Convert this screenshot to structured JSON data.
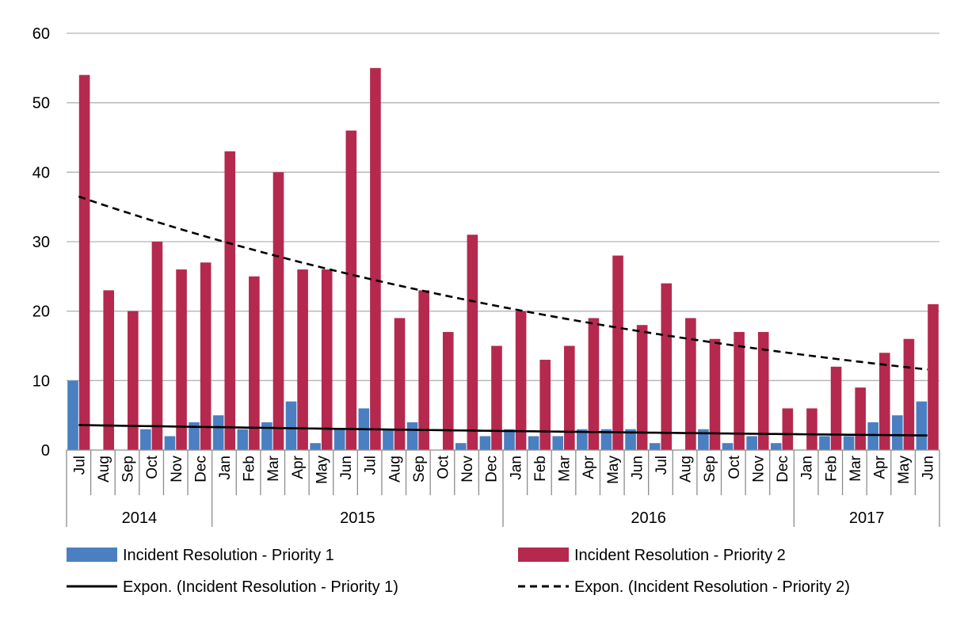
{
  "chart_data": {
    "type": "bar",
    "ylim": [
      0,
      60
    ],
    "yticks": [
      "0",
      "10",
      "20",
      "30",
      "40",
      "50",
      "60"
    ],
    "grid": true,
    "legend_position": "bottom",
    "categories": [
      "Jul",
      "Aug",
      "Sep",
      "Oct",
      "Nov",
      "Dec",
      "Jan",
      "Feb",
      "Mar",
      "Apr",
      "May",
      "Jun",
      "Jul",
      "Aug",
      "Sep",
      "Oct",
      "Nov",
      "Dec",
      "Jan",
      "Feb",
      "Mar",
      "Apr",
      "May",
      "Jun",
      "Jul",
      "Aug",
      "Sep",
      "Oct",
      "Nov",
      "Dec",
      "Jan",
      "Feb",
      "Mar",
      "Apr",
      "May",
      "Jun"
    ],
    "years": [
      {
        "label": "2014",
        "count": 6
      },
      {
        "label": "2015",
        "count": 12
      },
      {
        "label": "2016",
        "count": 12
      },
      {
        "label": "2017",
        "count": 6
      }
    ],
    "series": [
      {
        "name": "Incident Resolution - Priority 1",
        "color": "#4a7fc1",
        "values": [
          10,
          0,
          0,
          3,
          2,
          4,
          5,
          3,
          4,
          7,
          1,
          3,
          6,
          3,
          4,
          0,
          1,
          2,
          3,
          2,
          2,
          3,
          3,
          3,
          1,
          0,
          3,
          1,
          2,
          1,
          0,
          2,
          2,
          4,
          5,
          7
        ]
      },
      {
        "name": "Incident Resolution - Priority 2",
        "color": "#b5294e",
        "values": [
          54,
          23,
          20,
          30,
          26,
          27,
          43,
          25,
          40,
          26,
          26,
          46,
          55,
          19,
          23,
          17,
          31,
          15,
          20,
          13,
          15,
          19,
          28,
          18,
          24,
          19,
          16,
          17,
          17,
          6,
          6,
          12,
          9,
          14,
          16,
          21
        ]
      }
    ],
    "trendlines": [
      {
        "name": "Expon. (Incident Resolution - Priority 1)",
        "style": "solid",
        "color": "#000000",
        "start": 3.6,
        "end": 2.1
      },
      {
        "name": "Expon. (Incident Resolution - Priority 2)",
        "style": "dashed",
        "color": "#000000",
        "start": 36.5,
        "end": 11.6
      }
    ]
  }
}
